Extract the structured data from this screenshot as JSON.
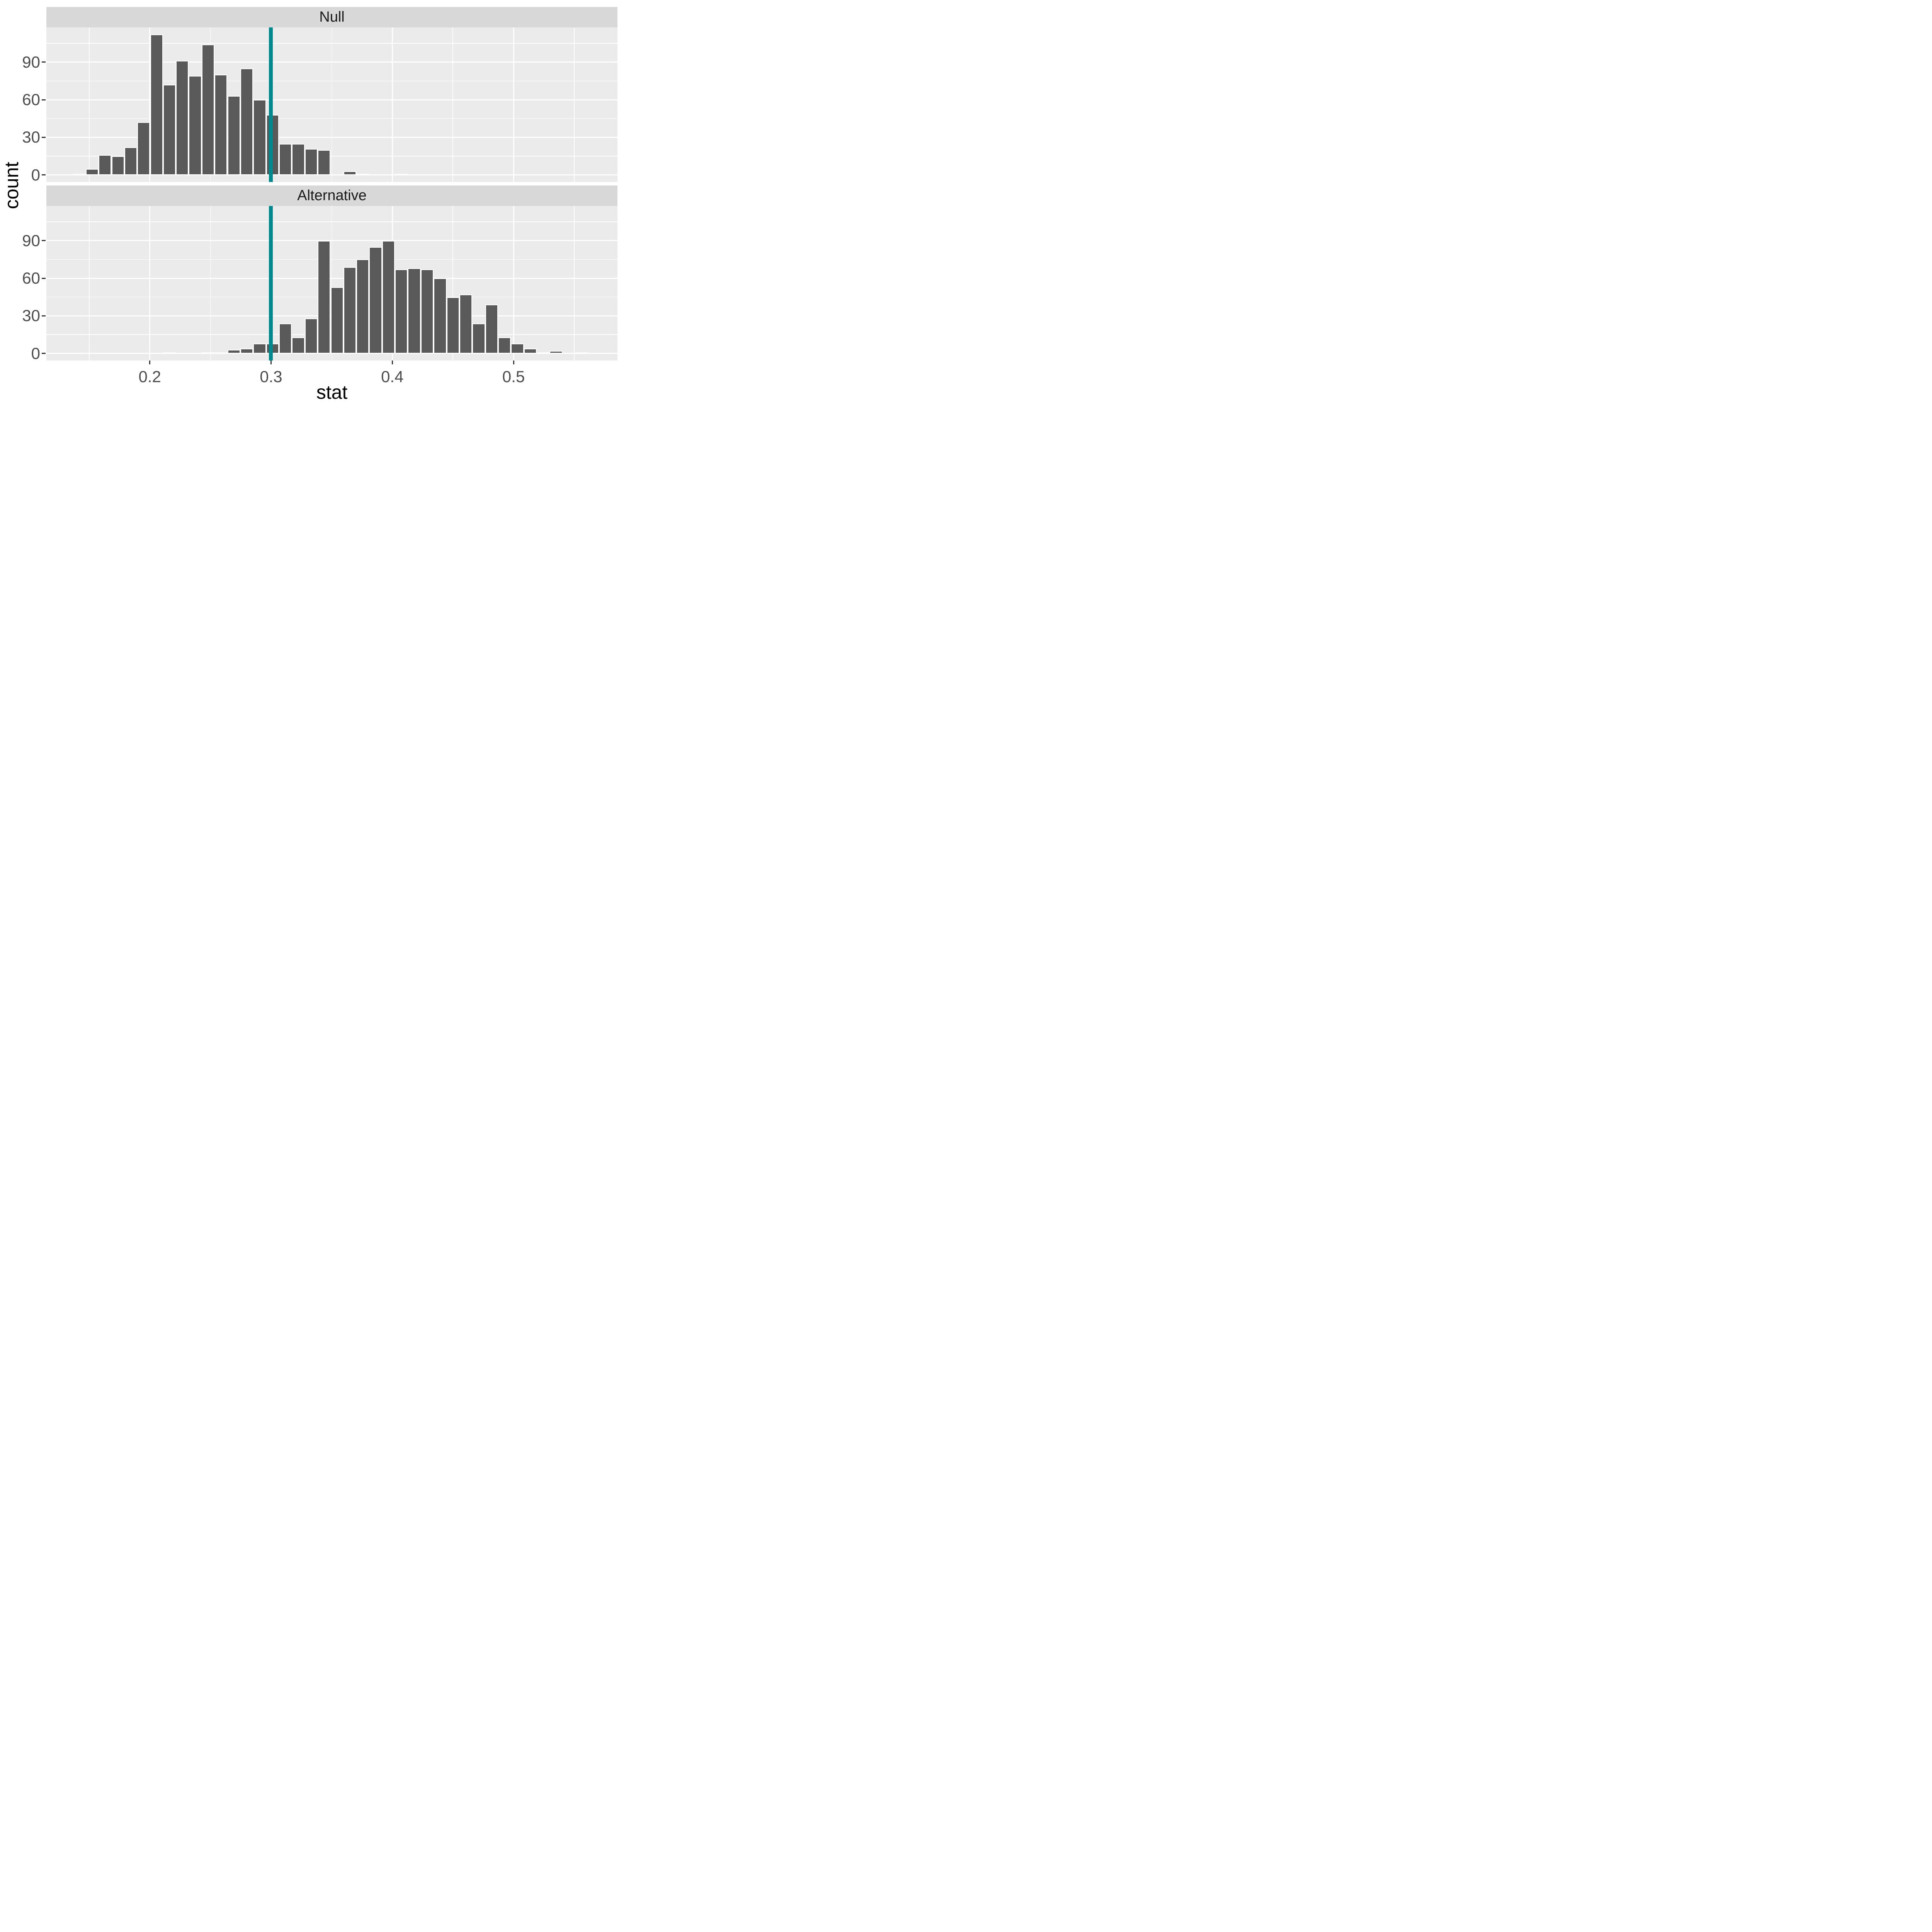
{
  "figure": {
    "background": "#ffffff",
    "panel_background": "#EBEBEB",
    "strip_background": "#D8D8D8",
    "gridline_color": "#ffffff",
    "bar_fill": "#595959",
    "bar_outline": "#ffffff",
    "tick_color": "#333333",
    "tick_label_color": "#4D4D4D",
    "axis_title_color": "#000000"
  },
  "chart_data": {
    "type": "bar",
    "subtype": "faceted-histogram",
    "title": "",
    "xlabel": "stat",
    "ylabel": "count",
    "legend": "none",
    "grid": "on",
    "x_domain": [
      0.1147,
      0.5857
    ],
    "y_domain": [
      -5.6,
      117.6
    ],
    "x_ticks": [
      0.2,
      0.3,
      0.4,
      0.5
    ],
    "x_tick_labels": [
      "0.2",
      "0.3",
      "0.4",
      "0.5"
    ],
    "x_minor_gridlines": [
      0.15,
      0.25,
      0.35,
      0.45,
      0.55
    ],
    "y_ticks": [
      0,
      30,
      60,
      90
    ],
    "y_tick_labels": [
      "0",
      "30",
      "60",
      "90"
    ],
    "y_minor_gridlines": [
      15,
      45,
      75,
      105
    ],
    "bin_width": 0.0106,
    "vline": {
      "x": 0.3,
      "color": "#008A8E"
    },
    "facets": [
      {
        "label": "Null",
        "bins": [
          [
            0.1365,
            1
          ],
          [
            0.1471,
            5
          ],
          [
            0.1577,
            16
          ],
          [
            0.1684,
            15
          ],
          [
            0.179,
            22
          ],
          [
            0.1896,
            42
          ],
          [
            0.2003,
            112
          ],
          [
            0.2109,
            72
          ],
          [
            0.2215,
            91
          ],
          [
            0.2321,
            79
          ],
          [
            0.2428,
            104
          ],
          [
            0.2534,
            80
          ],
          [
            0.264,
            63
          ],
          [
            0.2747,
            85
          ],
          [
            0.2853,
            60
          ],
          [
            0.2959,
            48
          ],
          [
            0.3065,
            25
          ],
          [
            0.3172,
            25
          ],
          [
            0.3278,
            21
          ],
          [
            0.3384,
            20
          ],
          [
            0.3597,
            3
          ],
          [
            0.3703,
            1
          ],
          [
            0.4022,
            1
          ]
        ]
      },
      {
        "label": "Alternative",
        "bins": [
          [
            0.2109,
            1
          ],
          [
            0.2428,
            1
          ],
          [
            0.2534,
            1
          ],
          [
            0.264,
            3
          ],
          [
            0.2747,
            4
          ],
          [
            0.2853,
            8
          ],
          [
            0.2959,
            8
          ],
          [
            0.3065,
            24
          ],
          [
            0.3172,
            13
          ],
          [
            0.3278,
            28
          ],
          [
            0.3384,
            90
          ],
          [
            0.3491,
            53
          ],
          [
            0.3597,
            69
          ],
          [
            0.3703,
            75
          ],
          [
            0.3809,
            85
          ],
          [
            0.3916,
            90
          ],
          [
            0.4022,
            67
          ],
          [
            0.4128,
            68
          ],
          [
            0.4235,
            67
          ],
          [
            0.4341,
            60
          ],
          [
            0.4447,
            45
          ],
          [
            0.4553,
            47
          ],
          [
            0.466,
            24
          ],
          [
            0.4766,
            39
          ],
          [
            0.4872,
            13
          ],
          [
            0.4979,
            8
          ],
          [
            0.5085,
            4
          ],
          [
            0.5191,
            1
          ],
          [
            0.5297,
            2
          ],
          [
            0.551,
            1
          ]
        ]
      }
    ]
  }
}
